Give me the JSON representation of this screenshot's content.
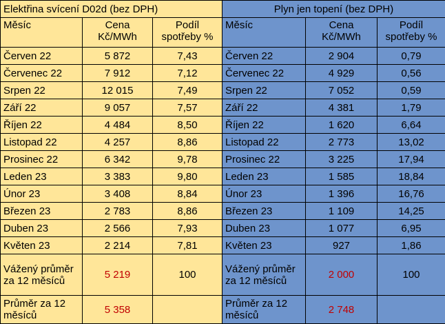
{
  "electricity": {
    "title": "Elektřina svícení D02d (bez DPH)",
    "headers": {
      "month": "Měsíc",
      "price": "Cena Kč/MWh",
      "share": "Podíl spotřeby %"
    },
    "rows": [
      {
        "month": "Červen 22",
        "price": "5 872",
        "share": "7,43"
      },
      {
        "month": "Červenec 22",
        "price": "7 912",
        "share": "7,12"
      },
      {
        "month": "Srpen 22",
        "price": "12 015",
        "share": "7,49"
      },
      {
        "month": "Září 22",
        "price": "9 057",
        "share": "7,57"
      },
      {
        "month": "Říjen 22",
        "price": "4 484",
        "share": "8,50"
      },
      {
        "month": "Listopad 22",
        "price": "4 257",
        "share": "8,86"
      },
      {
        "month": "Prosinec 22",
        "price": "6 342",
        "share": "9,78"
      },
      {
        "month": "Leden 23",
        "price": "3 383",
        "share": "9,80"
      },
      {
        "month": "Únor 23",
        "price": "3 408",
        "share": "8,84"
      },
      {
        "month": "Březen 23",
        "price": "2 783",
        "share": "8,86"
      },
      {
        "month": "Duben 23",
        "price": "2 566",
        "share": "7,93"
      },
      {
        "month": "Květen 23",
        "price": "2 214",
        "share": "7,81"
      }
    ],
    "weighted": {
      "label": "Vážený průměr za 12 měsíců",
      "price": "5 219",
      "share": "100"
    },
    "average": {
      "label": "Průměr za 12 měsíců",
      "price": "5 358",
      "share": ""
    }
  },
  "gas": {
    "title": "Plyn jen topení (bez DPH)",
    "headers": {
      "month": "Měsíc",
      "price": "Cena Kč/MWh",
      "share": "Podíl spotřeby %"
    },
    "rows": [
      {
        "month": "Červen 22",
        "price": "2 904",
        "share": "0,79"
      },
      {
        "month": "Červenec 22",
        "price": "4 929",
        "share": "0,56"
      },
      {
        "month": "Srpen 22",
        "price": "7 052",
        "share": "0,59"
      },
      {
        "month": "Září 22",
        "price": "4 381",
        "share": "1,79"
      },
      {
        "month": "Říjen 22",
        "price": "1 620",
        "share": "6,64"
      },
      {
        "month": "Listopad 22",
        "price": "2 773",
        "share": "13,02"
      },
      {
        "month": "Prosinec 22",
        "price": "3 225",
        "share": "17,94"
      },
      {
        "month": "Leden 23",
        "price": "1 585",
        "share": "18,84"
      },
      {
        "month": "Únor 23",
        "price": "1 396",
        "share": "16,76"
      },
      {
        "month": "Březen 23",
        "price": "1 109",
        "share": "14,25"
      },
      {
        "month": "Duben 23",
        "price": "1 077",
        "share": "6,95"
      },
      {
        "month": "Květen 23",
        "price": "927",
        "share": "1,86"
      }
    ],
    "weighted": {
      "label": "Vážený průměr za 12 měsíců",
      "price": "2 000",
      "share": "100"
    },
    "average": {
      "label": "Průměr za 12 měsíců",
      "price": "2 748",
      "share": ""
    }
  }
}
